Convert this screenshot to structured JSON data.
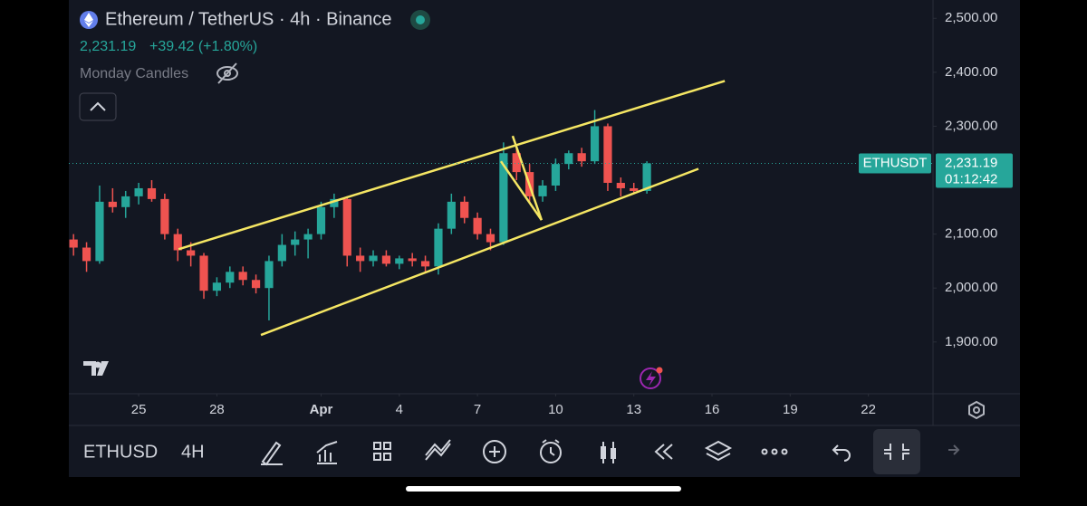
{
  "chart_data": {
    "type": "candlestick",
    "title": "Ethereum / TetherUS · 4h · Binance",
    "last_price": {
      "value": 2231.19,
      "label": "2,231.19"
    },
    "price_change": "+39.42 (+1.80%)",
    "indicator": "Monday Candles",
    "symbol_tag": "ETHUSDT",
    "countdown": "01:12:42",
    "up_color": "#26a69a",
    "down_color": "#ef5350",
    "x": [
      22.5,
      23,
      23.5,
      24,
      24.5,
      25,
      25.5,
      26,
      26.5,
      27,
      27.5,
      28,
      28.5,
      29,
      29.5,
      30,
      30.5,
      31,
      31.5,
      32,
      32.5,
      33,
      33.5,
      34,
      34.5,
      35,
      35.5,
      36,
      36.5,
      37,
      37.5,
      38,
      38.5,
      39,
      39.5,
      40,
      40.5,
      41,
      41.5,
      42,
      42.5,
      43,
      43.5,
      44,
      44.5
    ],
    "open": [
      2090,
      2075,
      2050,
      2160,
      2150,
      2170,
      2185,
      2165,
      2100,
      2070,
      2060,
      1995,
      2010,
      2030,
      2015,
      2000,
      2050,
      2080,
      2090,
      2100,
      2150,
      2165,
      2060,
      2050,
      2060,
      2045,
      2055,
      2050,
      2040,
      2110,
      2160,
      2130,
      2100,
      2085,
      2250,
      2215,
      2170,
      2190,
      2230,
      2250,
      2235,
      2300,
      2195,
      2185,
      2180
    ],
    "high": [
      2100,
      2085,
      2190,
      2185,
      2180,
      2195,
      2200,
      2175,
      2110,
      2085,
      2065,
      2020,
      2040,
      2040,
      2025,
      2060,
      2100,
      2105,
      2110,
      2160,
      2175,
      2170,
      2075,
      2070,
      2070,
      2060,
      2065,
      2060,
      2120,
      2175,
      2170,
      2140,
      2110,
      2270,
      2265,
      2230,
      2200,
      2240,
      2255,
      2260,
      2330,
      2305,
      2205,
      2195,
      2235
    ],
    "low": [
      2060,
      2030,
      2045,
      2140,
      2130,
      2155,
      2160,
      2090,
      2050,
      2040,
      1980,
      1985,
      2000,
      2005,
      1990,
      1940,
      2040,
      2060,
      2055,
      2090,
      2130,
      2040,
      2030,
      2040,
      2040,
      2035,
      2040,
      2030,
      2025,
      2100,
      2120,
      2090,
      2070,
      2080,
      2200,
      2160,
      2160,
      2180,
      2220,
      2225,
      2230,
      2180,
      2170,
      2175,
      2175
    ],
    "close": [
      2075,
      2050,
      2160,
      2150,
      2170,
      2185,
      2165,
      2100,
      2070,
      2060,
      1995,
      2010,
      2030,
      2015,
      2000,
      2050,
      2080,
      2090,
      2100,
      2150,
      2165,
      2060,
      2050,
      2060,
      2045,
      2055,
      2050,
      2040,
      2110,
      2160,
      2130,
      2100,
      2085,
      2250,
      2215,
      2170,
      2190,
      2230,
      2250,
      2235,
      2300,
      2195,
      2185,
      2180,
      2231.19
    ],
    "trendlines": [
      {
        "color": "#f5e663",
        "x": [
          26.53,
          47.49
        ],
        "y": [
          2072,
          2384
        ]
      },
      {
        "color": "#f5e663",
        "x": [
          29.69,
          46.48
        ],
        "y": [
          1913,
          2221
        ]
      },
      {
        "color": "#f5e663",
        "x": [
          38.9,
          40.46
        ],
        "y": [
          2235,
          2126
        ]
      },
      {
        "color": "#f5e663",
        "x": [
          39.35,
          40.46
        ],
        "y": [
          2282,
          2126
        ]
      }
    ],
    "xlim": [
      22.32,
      55.48
    ],
    "ylim": [
      1804,
      2534
    ],
    "xticks": [
      25,
      28,
      {
        "value": 32,
        "label": "Apr"
      },
      {
        "value": 35,
        "label": "4"
      },
      {
        "value": 38,
        "label": "7"
      },
      {
        "value": 41,
        "label": "10"
      },
      {
        "value": 44,
        "label": "13"
      },
      {
        "value": 47,
        "label": "16"
      },
      {
        "value": 50,
        "label": "19"
      },
      {
        "value": 53,
        "label": "22"
      }
    ],
    "yticks": [
      {
        "value": 1900,
        "label": "1,900.00"
      },
      {
        "value": 2000,
        "label": "2,000.00"
      },
      {
        "value": 2100,
        "label": "2,100.00"
      },
      {
        "value": 2300,
        "label": "2,300.00"
      },
      {
        "value": 2400,
        "label": "2,400.00"
      },
      {
        "value": 2500,
        "label": "2,500.00"
      }
    ],
    "grid": false
  },
  "toolbar": {
    "symbol": "ETHUSD",
    "interval": "4H"
  }
}
